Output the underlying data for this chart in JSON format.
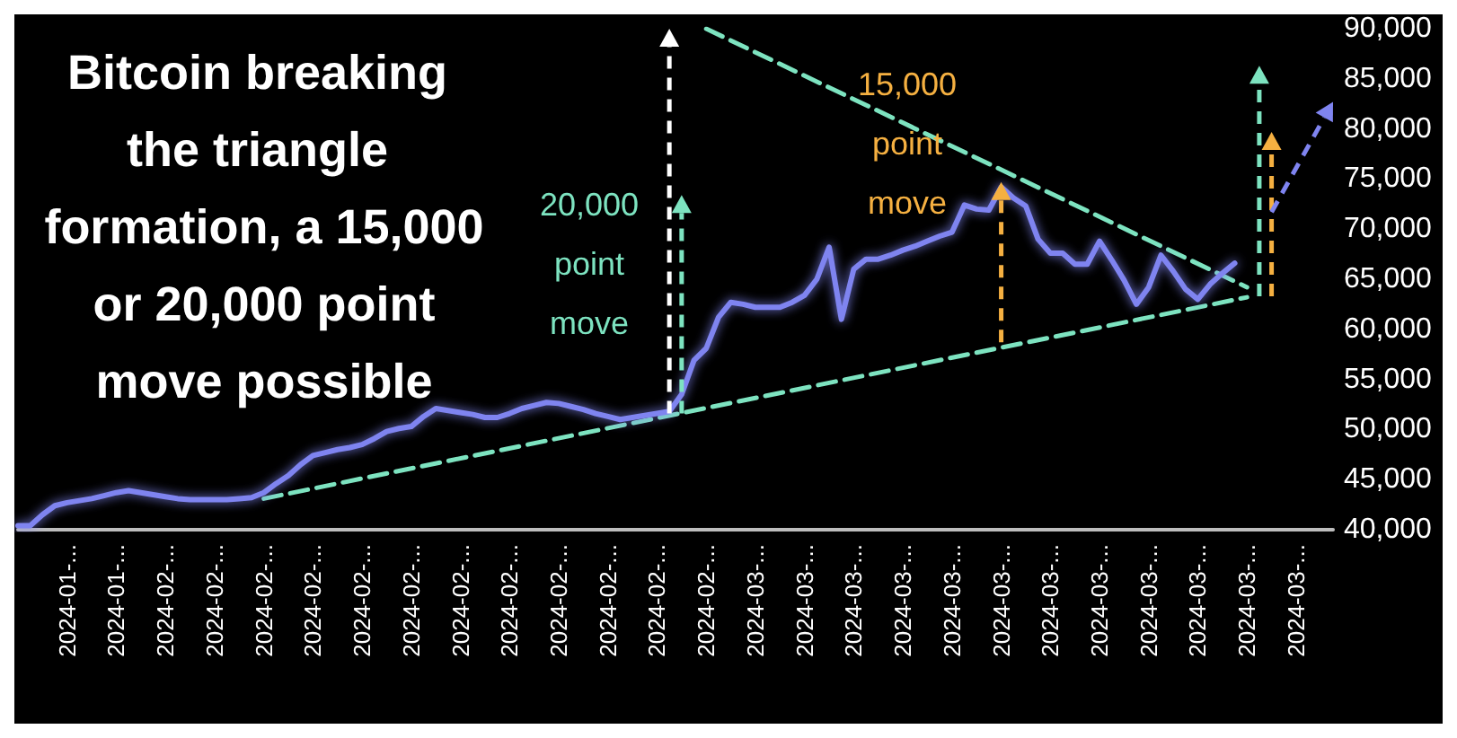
{
  "chart_data": {
    "type": "line",
    "title": "Bitcoin breaking the triangle formation, a 15,000 or 20,000 point move possible",
    "categories": [
      null,
      null,
      null,
      null,
      "2024-01-...",
      null,
      null,
      null,
      "2024-01-...",
      null,
      null,
      null,
      "2024-02-...",
      null,
      null,
      null,
      "2024-02-...",
      null,
      null,
      null,
      "2024-02-...",
      null,
      null,
      null,
      "2024-02-...",
      null,
      null,
      null,
      "2024-02-...",
      null,
      null,
      null,
      "2024-02-...",
      null,
      null,
      null,
      "2024-02-...",
      null,
      null,
      null,
      "2024-02-...",
      null,
      null,
      null,
      "2024-02-...",
      null,
      null,
      null,
      "2024-02-...",
      null,
      null,
      null,
      "2024-02-...",
      null,
      null,
      null,
      "2024-02-...",
      null,
      null,
      null,
      "2024-03-...",
      null,
      null,
      null,
      "2024-03-...",
      null,
      null,
      null,
      "2024-03-...",
      null,
      null,
      null,
      "2024-03-...",
      null,
      null,
      null,
      "2024-03-...",
      null,
      null,
      null,
      "2024-03-...",
      null,
      null,
      null,
      "2024-03-...",
      null,
      null,
      null,
      "2024-03-...",
      null,
      null,
      null,
      "2024-03-...",
      null,
      null,
      null,
      "2024-03-...",
      null,
      null,
      null,
      "2024-03-...",
      null,
      null,
      null,
      "2024-03-...",
      null,
      null,
      null
    ],
    "ylim": [
      40000,
      90000
    ],
    "yticks": [
      {
        "value": 40000,
        "label": "40,000"
      },
      {
        "value": 45000,
        "label": "45,000"
      },
      {
        "value": 50000,
        "label": "50,000"
      },
      {
        "value": 55000,
        "label": "55,000"
      },
      {
        "value": 60000,
        "label": "60,000"
      },
      {
        "value": 65000,
        "label": "65,000"
      },
      {
        "value": 70000,
        "label": "70,000"
      },
      {
        "value": 75000,
        "label": "75,000"
      },
      {
        "value": 80000,
        "label": "80,000"
      },
      {
        "value": 85000,
        "label": "85,000"
      },
      {
        "value": 90000,
        "label": "90,000"
      }
    ],
    "grid": false,
    "series": [
      {
        "color": "#7f84f0",
        "marker": "none",
        "line_style": "solid",
        "values": [
          40400,
          40400,
          41500,
          42400,
          42700,
          42900,
          43100,
          43400,
          43700,
          43900,
          43700,
          43500,
          43300,
          43100,
          43000,
          43000,
          43000,
          43000,
          43100,
          43200,
          43700,
          44600,
          45400,
          46500,
          47400,
          47700,
          48000,
          48200,
          48500,
          49100,
          49800,
          50100,
          50300,
          51300,
          52100,
          51900,
          51700,
          51500,
          51200,
          51200,
          51600,
          52100,
          52400,
          52700,
          52600,
          52300,
          52000,
          51600,
          51300,
          51000,
          51200,
          51400,
          51600,
          51800,
          53500,
          56900,
          58100,
          61200,
          62700,
          62500,
          62200,
          62200,
          62200,
          62700,
          63400,
          65000,
          68200,
          61000,
          66000,
          67000,
          67000,
          67400,
          67900,
          68300,
          68800,
          69300,
          69700,
          72400,
          72000,
          71900,
          74200,
          73100,
          72300,
          69000,
          67600,
          67600,
          66500,
          66500,
          68800,
          66900,
          64900,
          62500,
          64200,
          67400,
          65800,
          64000,
          63000,
          64500,
          65600,
          66600,
          null,
          null,
          null,
          null,
          null,
          null,
          null,
          null
        ]
      },
      {
        "color": "#7de3c0",
        "marker": "none",
        "line_style": "dashed",
        "values": [
          null,
          null,
          null,
          null,
          null,
          null,
          null,
          null,
          null,
          null,
          null,
          null,
          null,
          null,
          null,
          null,
          null,
          null,
          null,
          null,
          43100,
          null,
          null,
          null,
          null,
          null,
          null,
          null,
          null,
          null,
          null,
          null,
          null,
          null,
          null,
          null,
          null,
          null,
          null,
          null,
          null,
          null,
          null,
          null,
          null,
          null,
          null,
          null,
          null,
          null,
          null,
          null,
          null,
          null,
          null,
          null,
          null,
          null,
          null,
          null,
          null,
          null,
          null,
          null,
          null,
          null,
          null,
          null,
          null,
          null,
          null,
          null,
          null,
          null,
          null,
          null,
          null,
          null,
          null,
          null,
          null,
          null,
          null,
          null,
          null,
          null,
          null,
          null,
          null,
          null,
          null,
          null,
          null,
          null,
          null,
          null,
          null,
          null,
          null,
          null,
          63200,
          null,
          null,
          null,
          null,
          null,
          null,
          null
        ]
      },
      {
        "color": "#7de3c0",
        "marker": "none",
        "line_style": "dashed",
        "values": [
          null,
          null,
          null,
          null,
          null,
          null,
          null,
          null,
          null,
          null,
          null,
          null,
          null,
          null,
          null,
          null,
          null,
          null,
          null,
          null,
          null,
          null,
          null,
          null,
          null,
          null,
          null,
          null,
          null,
          null,
          null,
          null,
          null,
          null,
          null,
          null,
          null,
          null,
          null,
          null,
          null,
          null,
          null,
          null,
          null,
          null,
          null,
          null,
          null,
          null,
          null,
          null,
          null,
          null,
          null,
          null,
          90000,
          null,
          null,
          null,
          null,
          null,
          null,
          null,
          null,
          null,
          null,
          null,
          null,
          null,
          null,
          null,
          null,
          null,
          null,
          null,
          null,
          null,
          null,
          null,
          null,
          null,
          null,
          null,
          null,
          null,
          null,
          null,
          null,
          null,
          null,
          null,
          null,
          null,
          null,
          null,
          null,
          null,
          null,
          null,
          64200,
          null,
          null,
          null,
          null,
          null,
          null,
          null
        ]
      }
    ],
    "annotations": [
      "20,000\npoint\nmove",
      "15,000\npoint\nmove"
    ]
  }
}
